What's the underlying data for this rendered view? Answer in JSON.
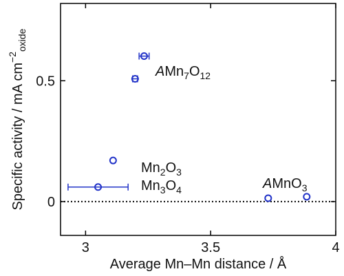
{
  "chart_data": {
    "type": "scatter",
    "x_label": [
      {
        "text": "Average Mn–Mn distance / Å"
      }
    ],
    "y_label": [
      {
        "text": "Specific activity / mA cm"
      },
      {
        "text": "−2",
        "style": "sup"
      },
      {
        "text": "oxide",
        "style": "sub"
      }
    ],
    "series": [
      {
        "color": "#2233c8",
        "x": [
          3.234,
          3.198,
          3.11,
          3.05,
          3.73,
          3.884
        ],
        "values": [
          0.602,
          0.508,
          0.17,
          0.06,
          0.014,
          0.02
        ],
        "xerr": [
          0.02,
          0.01,
          null,
          0.12,
          null,
          null
        ]
      }
    ],
    "annotations": [
      [
        {
          "text": "A",
          "style": "italic"
        },
        {
          "text": "Mn"
        },
        {
          "text": "7",
          "style": "sub"
        },
        {
          "text": "O"
        },
        {
          "text": "12",
          "style": "sub"
        }
      ],
      [
        {
          "text": "Mn"
        },
        {
          "text": "2",
          "style": "sub"
        },
        {
          "text": "O"
        },
        {
          "text": "3",
          "style": "sub"
        }
      ],
      [
        {
          "text": "Mn"
        },
        {
          "text": "3",
          "style": "sub"
        },
        {
          "text": "O"
        },
        {
          "text": "4",
          "style": "sub"
        }
      ],
      [
        {
          "text": "A",
          "style": "italic"
        },
        {
          "text": "MnO"
        },
        {
          "text": "3",
          "style": "sub"
        }
      ]
    ],
    "xlim": [
      2.9,
      4
    ],
    "xticks": [
      3,
      3.5,
      4
    ],
    "ylim": [
      -0.14,
      0.82
    ],
    "yticks": [
      0,
      0.5
    ],
    "hline": 0
  }
}
